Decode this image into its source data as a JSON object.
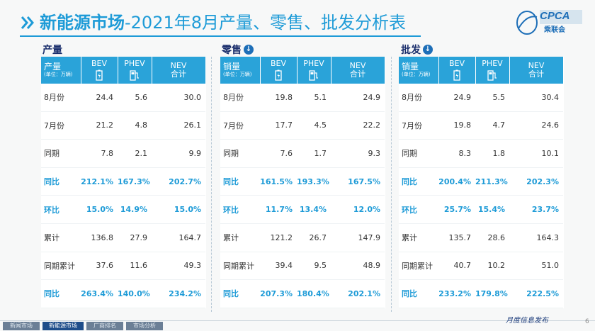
{
  "title": {
    "bold": "新能源市场",
    "rest": "-2021年8月产量、零售、批发分析表"
  },
  "logo": {
    "text": "CPCA",
    "sub": "乘联会"
  },
  "columns": {
    "bev": "BEV",
    "phev": "PHEV",
    "nev_top": "NEV",
    "nev_bottom": "合计",
    "unit": "(单位：万辆)"
  },
  "sections": [
    {
      "label": "产量",
      "row_header": "产量",
      "rows": [
        {
          "label": "8月份",
          "bev": "24.4",
          "phev": "5.6",
          "nev": "30.0",
          "highlight": false
        },
        {
          "label": "7月份",
          "bev": "21.2",
          "phev": "4.8",
          "nev": "26.1",
          "highlight": false
        },
        {
          "label": "同期",
          "bev": "7.8",
          "phev": "2.1",
          "nev": "9.9",
          "highlight": false
        },
        {
          "label": "同比",
          "bev": "212.1%",
          "phev": "167.3%",
          "nev": "202.7%",
          "highlight": true
        },
        {
          "label": "环比",
          "bev": "15.0%",
          "phev": "14.9%",
          "nev": "15.0%",
          "highlight": true
        },
        {
          "label": "累计",
          "bev": "136.8",
          "phev": "27.9",
          "nev": "164.7",
          "highlight": false
        },
        {
          "label": "同期累计",
          "bev": "37.6",
          "phev": "11.6",
          "nev": "49.3",
          "highlight": false
        },
        {
          "label": "同比",
          "bev": "263.4%",
          "phev": "140.0%",
          "nev": "234.2%",
          "highlight": true
        }
      ]
    },
    {
      "label": "零售",
      "row_header": "销量",
      "rows": [
        {
          "label": "8月份",
          "bev": "19.8",
          "phev": "5.1",
          "nev": "24.9",
          "highlight": false
        },
        {
          "label": "7月份",
          "bev": "17.7",
          "phev": "4.5",
          "nev": "22.2",
          "highlight": false
        },
        {
          "label": "同期",
          "bev": "7.6",
          "phev": "1.7",
          "nev": "9.3",
          "highlight": false
        },
        {
          "label": "同比",
          "bev": "161.5%",
          "phev": "193.3%",
          "nev": "167.5%",
          "highlight": true
        },
        {
          "label": "环比",
          "bev": "11.7%",
          "phev": "13.4%",
          "nev": "12.0%",
          "highlight": true
        },
        {
          "label": "累计",
          "bev": "121.2",
          "phev": "26.7",
          "nev": "147.9",
          "highlight": false
        },
        {
          "label": "同期累计",
          "bev": "39.4",
          "phev": "9.5",
          "nev": "48.9",
          "highlight": false
        },
        {
          "label": "同比",
          "bev": "207.3%",
          "phev": "180.4%",
          "nev": "202.1%",
          "highlight": true
        }
      ]
    },
    {
      "label": "批发",
      "row_header": "销量",
      "rows": [
        {
          "label": "8月份",
          "bev": "24.9",
          "phev": "5.5",
          "nev": "30.4",
          "highlight": false
        },
        {
          "label": "7月份",
          "bev": "19.8",
          "phev": "4.7",
          "nev": "24.6",
          "highlight": false
        },
        {
          "label": "同期",
          "bev": "8.3",
          "phev": "1.8",
          "nev": "10.1",
          "highlight": false
        },
        {
          "label": "同比",
          "bev": "200.4%",
          "phev": "211.3%",
          "nev": "202.3%",
          "highlight": true
        },
        {
          "label": "环比",
          "bev": "25.7%",
          "phev": "15.4%",
          "nev": "23.7%",
          "highlight": true
        },
        {
          "label": "累计",
          "bev": "135.7",
          "phev": "28.6",
          "nev": "164.3",
          "highlight": false
        },
        {
          "label": "同期累计",
          "bev": "40.7",
          "phev": "10.2",
          "nev": "51.0",
          "highlight": false
        },
        {
          "label": "同比",
          "bev": "233.2%",
          "phev": "179.8%",
          "nev": "222.5%",
          "highlight": true
        }
      ]
    }
  ],
  "footer": {
    "tabs": [
      {
        "label": "新闻市场",
        "active": false
      },
      {
        "label": "新能源市场",
        "active": true
      },
      {
        "label": "厂商排名",
        "active": false
      },
      {
        "label": "市场分析",
        "active": false
      }
    ],
    "note": "月度信息发布",
    "page": "6"
  },
  "colors": {
    "accent": "#1e9bd7",
    "header_bg": "#2aa3d9",
    "section_label": "#1a2e6c",
    "footer_active": "#1e4d8a"
  }
}
